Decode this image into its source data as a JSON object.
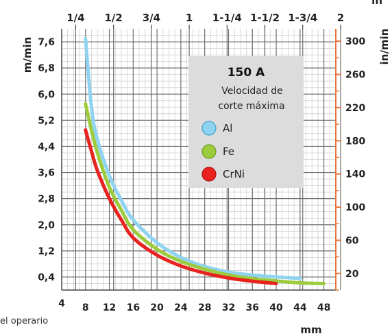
{
  "chart_data": {
    "type": "line",
    "legend_title": "150 A",
    "legend_subtitle": [
      "Velocidad de",
      "corte máxima"
    ],
    "legend_placement": "top-right",
    "grid": true,
    "xlabel": "mm",
    "ylabel_left": "m/min",
    "ylabel_right": "in/min",
    "ylabel_top_right": "in",
    "xlim": [
      4,
      50
    ],
    "ylim_left": [
      0,
      8.0
    ],
    "ylim_right": [
      0,
      315
    ],
    "x_ticks": [
      "4",
      "8",
      "12",
      "16",
      "20",
      "24",
      "28",
      "32",
      "36",
      "40",
      "44",
      "48"
    ],
    "y_left_ticks": [
      "0,4",
      "1,2",
      "2,0",
      "2,8",
      "3,6",
      "4,4",
      "5,2",
      "6,0",
      "6,8",
      "7,6"
    ],
    "y_right_ticks": [
      "20",
      "60",
      "100",
      "140",
      "180",
      "220",
      "260",
      "300"
    ],
    "x_top_ticks": [
      "1/4",
      "1/2",
      "3/4",
      "1",
      "1-1/4",
      "1-1/2",
      "1-3/4",
      "2"
    ],
    "colors": {
      "Al": "#8fd3f0",
      "Fe": "#9ccc3c",
      "CrNi": "#e8221e",
      "legend_bg": "#dcdcdc",
      "right_axis": "#e8743a"
    },
    "series": [
      {
        "name": "Al",
        "x": [
          8,
          9,
          10,
          12,
          14,
          16,
          20,
          24,
          28,
          32,
          36,
          40,
          44
        ],
        "y": [
          7.7,
          5.6,
          4.6,
          3.5,
          2.75,
          2.15,
          1.45,
          1.0,
          0.72,
          0.55,
          0.46,
          0.4,
          0.36
        ]
      },
      {
        "name": "Fe",
        "x": [
          8,
          9,
          10,
          12,
          14,
          16,
          20,
          24,
          28,
          32,
          36,
          40,
          44,
          48
        ],
        "y": [
          5.7,
          4.9,
          4.2,
          3.15,
          2.45,
          1.85,
          1.25,
          0.88,
          0.64,
          0.46,
          0.35,
          0.28,
          0.22,
          0.2
        ]
      },
      {
        "name": "CrNi",
        "x": [
          8,
          9,
          10,
          12,
          14,
          16,
          20,
          24,
          28,
          32,
          36,
          40
        ],
        "y": [
          4.9,
          4.25,
          3.65,
          2.8,
          2.15,
          1.6,
          1.07,
          0.74,
          0.52,
          0.37,
          0.27,
          0.2
        ]
      }
    ],
    "footer_text": "el operario"
  }
}
